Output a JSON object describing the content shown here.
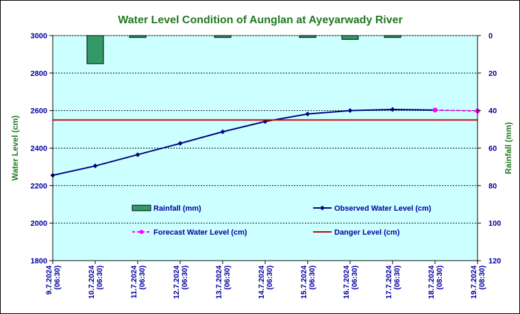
{
  "chart_data": {
    "type": "line",
    "title": "Water Level Condition of Aunglan at Ayeyarwady River",
    "ylabel": "Water Level (cm)",
    "y2label": "Rainfall (mm)",
    "ylim": [
      1800,
      3000
    ],
    "y2lim": [
      0,
      120
    ],
    "y2_inverted": true,
    "yticks": [
      1800,
      2000,
      2200,
      2400,
      2600,
      2800,
      3000
    ],
    "y2ticks": [
      0,
      20,
      40,
      60,
      80,
      100,
      120
    ],
    "grid": true,
    "categories": [
      "9.7.2024\n(06:30)",
      "10.7.2024\n(06:30)",
      "11.7.2024\n(06:30)",
      "12.7.2024\n(06:30)",
      "13.7.2024\n(06:30)",
      "14.7.2024\n(06:30)",
      "15.7.2024\n(06:30)",
      "16.7.2024\n(06:30)",
      "17.7.2024\n(06:30)",
      "18.7.2024\n(08:30)",
      "19.7.2024\n(08:30)"
    ],
    "series": [
      {
        "name": "Rainfall (mm)",
        "kind": "bar",
        "axis": "y2",
        "color": "#339966",
        "values": [
          null,
          15,
          1,
          null,
          1,
          null,
          1,
          2,
          1,
          null,
          null
        ]
      },
      {
        "name": "Observed Water Level (cm)",
        "kind": "line",
        "axis": "y",
        "color": "#000080",
        "marker": "diamond",
        "values": [
          2255,
          2305,
          2365,
          2425,
          2487,
          2542,
          2582,
          2600,
          2606,
          2603,
          null
        ]
      },
      {
        "name": "Forecast Water Level (cm)",
        "kind": "line",
        "axis": "y",
        "color": "#ff00ff",
        "dashed": true,
        "marker": "circle",
        "values": [
          null,
          null,
          null,
          null,
          null,
          null,
          null,
          null,
          null,
          2603,
          2598
        ]
      },
      {
        "name": "Danger Level (cm)",
        "kind": "line",
        "axis": "y",
        "color": "#cc0000",
        "constant": 2550
      }
    ],
    "legend": [
      "Rainfall (mm)",
      "Observed Water Level (cm)",
      "Forecast Water Level (cm)",
      "Danger Level (cm)"
    ],
    "legend_position": "inside-lower"
  }
}
